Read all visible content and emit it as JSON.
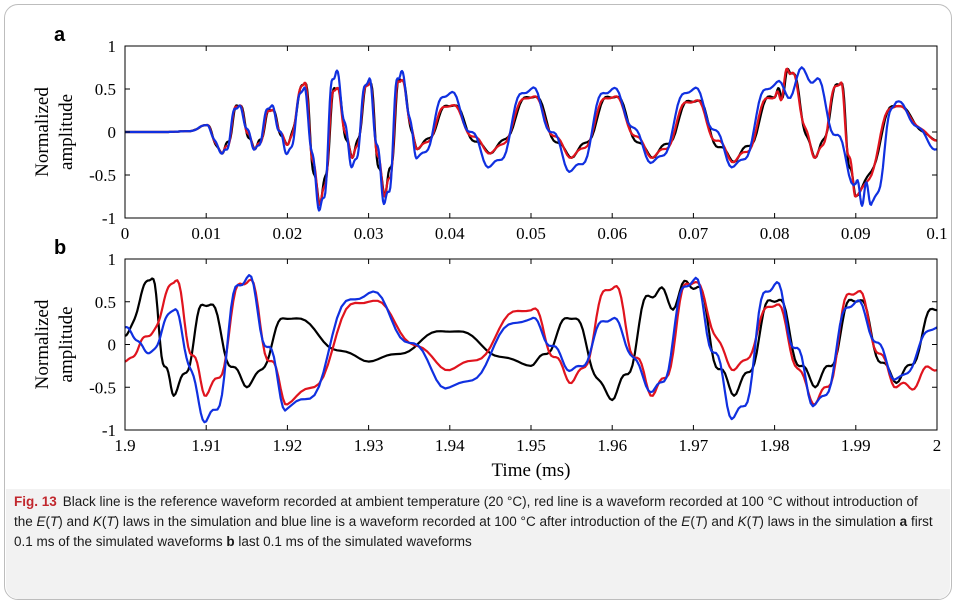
{
  "chart_data": [
    {
      "type": "line",
      "panel_label": "a",
      "ylabel": [
        "Normalized",
        "amplitude"
      ],
      "xlabel": "",
      "xlim": [
        0,
        0.1
      ],
      "ylim": [
        -1,
        1
      ],
      "x_ticks": [
        "0",
        "0.01",
        "0.02",
        "0.03",
        "0.04",
        "0.05",
        "0.06",
        "0.07",
        "0.08",
        "0.09",
        "0.1"
      ],
      "y_ticks": [
        "1",
        "0.5",
        "0",
        "-0.5",
        "-1"
      ],
      "grid": false,
      "series_colors": {
        "reference": "#000000",
        "no_laws": "#e0141e",
        "with_laws": "#1030e0"
      },
      "series": [
        {
          "id": "reference",
          "x": [
            0,
            0.005,
            0.008,
            0.01,
            0.012,
            0.014,
            0.016,
            0.018,
            0.02,
            0.022,
            0.024,
            0.026,
            0.028,
            0.03,
            0.032,
            0.034,
            0.036,
            0.04,
            0.045,
            0.05,
            0.055,
            0.06,
            0.065,
            0.07,
            0.075,
            0.08,
            0.082,
            0.085,
            0.088,
            0.09,
            0.095,
            0.1
          ],
          "y": [
            0,
            0,
            0.01,
            0.08,
            -0.25,
            0.3,
            -0.2,
            0.25,
            -0.15,
            0.55,
            -0.85,
            0.5,
            -0.3,
            0.55,
            -0.75,
            0.6,
            -0.2,
            0.3,
            -0.25,
            0.4,
            -0.3,
            0.4,
            -0.3,
            0.35,
            -0.35,
            0.4,
            0.68,
            -0.3,
            0.55,
            -0.75,
            0.3,
            -0.1
          ]
        },
        {
          "id": "no_laws",
          "x": [
            0,
            0.005,
            0.008,
            0.01,
            0.012,
            0.014,
            0.016,
            0.018,
            0.02,
            0.022,
            0.024,
            0.026,
            0.028,
            0.03,
            0.032,
            0.034,
            0.036,
            0.04,
            0.045,
            0.05,
            0.055,
            0.06,
            0.065,
            0.07,
            0.075,
            0.08,
            0.082,
            0.085,
            0.088,
            0.09,
            0.095,
            0.1
          ],
          "y": [
            0,
            0,
            0.01,
            0.08,
            -0.25,
            0.3,
            -0.2,
            0.25,
            -0.15,
            0.55,
            -0.85,
            0.5,
            -0.3,
            0.55,
            -0.75,
            0.6,
            -0.2,
            0.3,
            -0.25,
            0.4,
            -0.3,
            0.4,
            -0.3,
            0.35,
            -0.35,
            0.4,
            0.68,
            -0.3,
            0.55,
            -0.75,
            0.3,
            -0.1
          ]
        },
        {
          "id": "with_laws",
          "x": [
            0,
            0.005,
            0.008,
            0.01,
            0.012,
            0.014,
            0.016,
            0.018,
            0.02,
            0.022,
            0.024,
            0.026,
            0.028,
            0.03,
            0.032,
            0.034,
            0.036,
            0.04,
            0.045,
            0.05,
            0.055,
            0.06,
            0.065,
            0.07,
            0.075,
            0.08,
            0.085,
            0.09,
            0.092,
            0.095,
            0.1
          ],
          "y": [
            0,
            0,
            0.01,
            0.08,
            -0.25,
            0.3,
            -0.2,
            0.3,
            -0.25,
            0.5,
            -0.9,
            0.7,
            -0.4,
            0.6,
            -0.82,
            0.7,
            -0.3,
            0.45,
            -0.4,
            0.5,
            -0.45,
            0.5,
            -0.35,
            0.5,
            -0.4,
            0.55,
            0.6,
            -0.6,
            -0.82,
            0.35,
            -0.2
          ]
        }
      ]
    },
    {
      "type": "line",
      "panel_label": "b",
      "ylabel": [
        "Normalized",
        "amplitude"
      ],
      "xlabel": "Time (ms)",
      "xlim": [
        1.9,
        2.0
      ],
      "ylim": [
        -1,
        1
      ],
      "x_ticks": [
        "1.9",
        "1.91",
        "1.92",
        "1.93",
        "1.94",
        "1.95",
        "1.96",
        "1.97",
        "1.98",
        "1.99",
        "2"
      ],
      "y_ticks": [
        "1",
        "0.5",
        "0",
        "-0.5",
        "-1"
      ],
      "grid": false,
      "series_colors": {
        "reference": "#000000",
        "no_laws": "#e0141e",
        "with_laws": "#1030e0"
      },
      "series": [
        {
          "id": "reference",
          "x": [
            1.9,
            1.903,
            1.906,
            1.91,
            1.915,
            1.92,
            1.93,
            1.94,
            1.95,
            1.955,
            1.96,
            1.965,
            1.97,
            1.975,
            1.98,
            1.985,
            1.99,
            1.995,
            2.0
          ],
          "y": [
            0.1,
            0.75,
            -0.6,
            0.45,
            -0.5,
            0.3,
            -0.2,
            0.15,
            -0.25,
            0.3,
            -0.65,
            0.55,
            0.65,
            -0.6,
            0.5,
            -0.5,
            0.5,
            -0.45,
            0.4
          ]
        },
        {
          "id": "no_laws",
          "x": [
            1.9,
            1.903,
            1.906,
            1.91,
            1.915,
            1.92,
            1.93,
            1.94,
            1.95,
            1.955,
            1.96,
            1.965,
            1.97,
            1.975,
            1.98,
            1.985,
            1.99,
            1.995,
            2.0
          ],
          "y": [
            -0.2,
            0.1,
            0.72,
            -0.6,
            0.72,
            -0.7,
            0.5,
            -0.3,
            0.4,
            -0.45,
            0.65,
            -0.6,
            0.72,
            -0.3,
            0.45,
            -0.7,
            0.6,
            -0.5,
            -0.3
          ]
        },
        {
          "id": "with_laws",
          "x": [
            1.9,
            1.903,
            1.906,
            1.91,
            1.915,
            1.92,
            1.93,
            1.94,
            1.95,
            1.955,
            1.96,
            1.965,
            1.97,
            1.975,
            1.98,
            1.985,
            1.99,
            1.995,
            2.0
          ],
          "y": [
            0.2,
            -0.1,
            0.4,
            -0.9,
            0.78,
            -0.75,
            0.6,
            -0.5,
            0.3,
            -0.3,
            0.3,
            -0.55,
            0.75,
            -0.85,
            0.7,
            -0.7,
            0.5,
            -0.4,
            0.2
          ]
        }
      ]
    }
  ],
  "caption": {
    "label": "Fig. 13",
    "text_1": "Black line is the reference waveform recorded at ambient temperature (20 °C), red line is a waveform recorded at 100 °C without introduction of the ",
    "e_law": "E",
    "paren_t": "T",
    "and": " and ",
    "k_law": "K",
    "text_2": " laws in the simulation and blue line is a waveform recorded at 100 °C after introduction of the ",
    "text_3": " laws in the simulation ",
    "label_a": "a",
    "text_a": " first 0.1 ms of the simulated waveforms ",
    "label_b": "b",
    "text_b": " last 0.1 ms of the simulated waveforms"
  }
}
